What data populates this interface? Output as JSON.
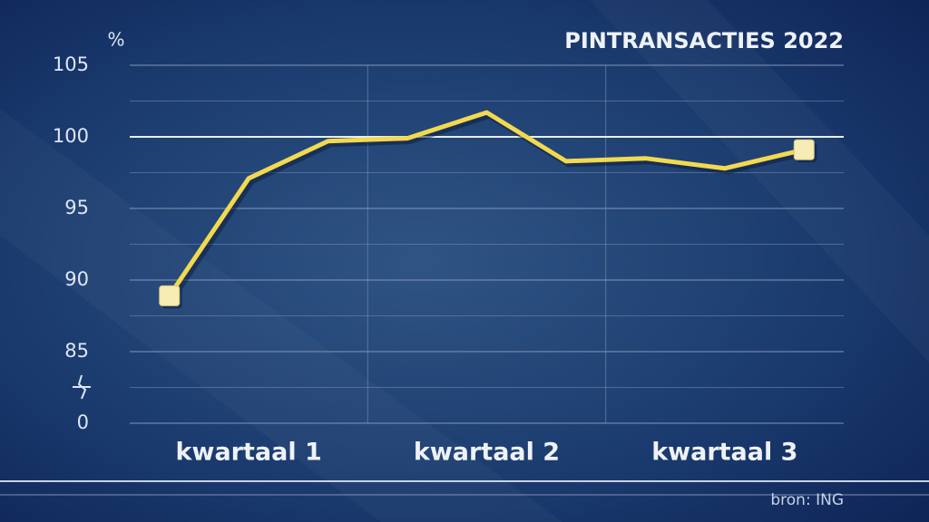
{
  "chart_data": {
    "type": "line",
    "title": "PINTRANSACTIES 2022",
    "y_unit": "%",
    "source": "bron: ING",
    "categories": [
      null,
      "kwartaal 1",
      null,
      null,
      "kwartaal 2",
      null,
      null,
      "kwartaal 3",
      null
    ],
    "series": [
      {
        "color": "#f2d94e",
        "values": [
          88.9,
          97.1,
          99.7,
          99.9,
          101.7,
          98.3,
          98.5,
          97.8,
          99.1
        ]
      }
    ],
    "ylim": [
      0,
      105
    ],
    "y_break": [
      0,
      80
    ],
    "yticks": [
      0,
      85,
      90,
      95,
      100,
      105
    ],
    "minor_yticks": [
      82.5,
      87.5,
      92.5,
      97.5,
      102.5
    ],
    "reference_line": 100,
    "grid": true
  }
}
